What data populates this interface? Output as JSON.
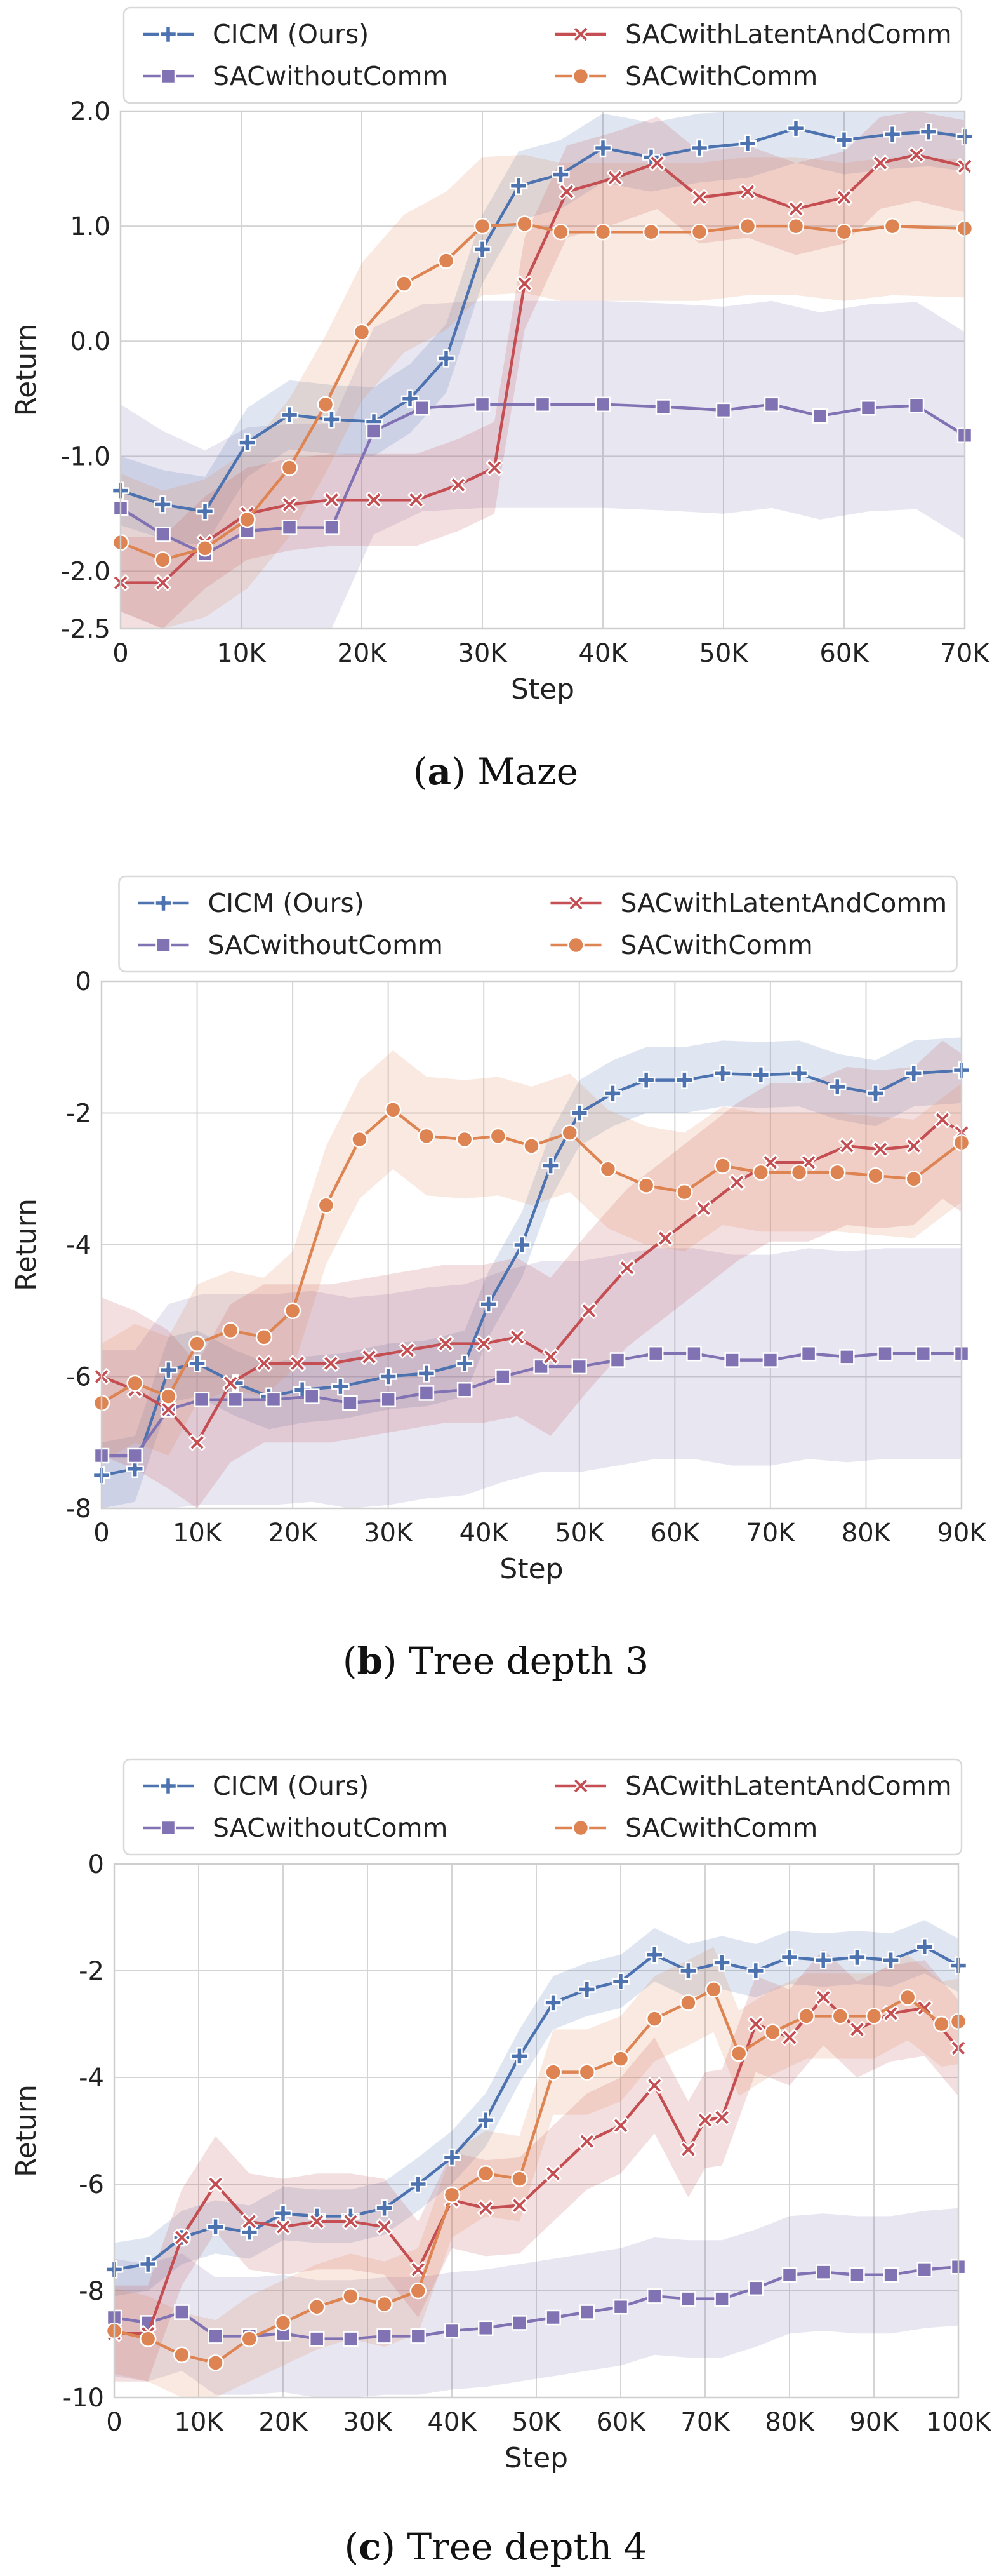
{
  "chart_data": [
    {
      "type": "line",
      "caption_letter": "a",
      "caption_open": "(",
      "caption_close": ")",
      "caption_text": " Maze",
      "xlabel": "Step",
      "ylabel": "Return",
      "xticks": [
        0,
        10000,
        20000,
        30000,
        40000,
        50000,
        60000,
        70000
      ],
      "xtick_labels": [
        "0",
        "10K",
        "20K",
        "30K",
        "40K",
        "50K",
        "60K",
        "70K"
      ],
      "yticks": [
        -2.5,
        -2.0,
        -1.0,
        0.0,
        1.0,
        2.0
      ],
      "ytick_labels": [
        "-2.5",
        "-2.0",
        "-1.0",
        "0.0",
        "1.0",
        "2.0"
      ],
      "xlim": [
        0,
        70000
      ],
      "ylim": [
        -2.5,
        2.0
      ],
      "legend_entries": [
        "CICM (Ours)",
        "SACwithoutComm",
        "SACwithLatentAndComm",
        "SACwithComm"
      ],
      "series": [
        {
          "name": "CICM (Ours)",
          "color": "#4c72b0",
          "marker": "plus",
          "x": [
            0,
            3500,
            7000,
            10500,
            14000,
            17500,
            21000,
            24000,
            27000,
            30000,
            33000,
            36500,
            40000,
            44000,
            48000,
            52000,
            56000,
            60000,
            64000,
            67000,
            70000
          ],
          "y": [
            -1.3,
            -1.42,
            -1.48,
            -0.88,
            -0.64,
            -0.68,
            -0.7,
            -0.5,
            -0.15,
            0.8,
            1.35,
            1.45,
            1.68,
            1.6,
            1.68,
            1.72,
            1.85,
            1.75,
            1.8,
            1.82,
            1.78
          ],
          "band": 0.3
        },
        {
          "name": "SACwithoutComm",
          "color": "#8172b3",
          "marker": "square",
          "x": [
            0,
            3500,
            7000,
            10500,
            14000,
            17500,
            21000,
            25000,
            30000,
            35000,
            40000,
            45000,
            50000,
            54000,
            58000,
            62000,
            66000,
            70000
          ],
          "y": [
            -1.45,
            -1.68,
            -1.85,
            -1.65,
            -1.62,
            -1.62,
            -0.78,
            -0.58,
            -0.55,
            -0.55,
            -0.55,
            -0.57,
            -0.6,
            -0.55,
            -0.65,
            -0.58,
            -0.56,
            -0.82
          ],
          "band": 0.9
        },
        {
          "name": "SACwithLatentAndComm",
          "color": "#c44e52",
          "marker": "cross",
          "x": [
            0,
            3500,
            7000,
            10500,
            14000,
            17500,
            21000,
            24500,
            28000,
            31000,
            33500,
            37000,
            41000,
            44500,
            48000,
            52000,
            56000,
            60000,
            63000,
            66000,
            70000
          ],
          "y": [
            -2.1,
            -2.1,
            -1.75,
            -1.5,
            -1.42,
            -1.38,
            -1.38,
            -1.38,
            -1.25,
            -1.1,
            0.5,
            1.3,
            1.42,
            1.55,
            1.25,
            1.3,
            1.15,
            1.25,
            1.55,
            1.62,
            1.52
          ],
          "band": 0.4
        },
        {
          "name": "SACwithComm",
          "color": "#dd8452",
          "marker": "circle",
          "x": [
            0,
            3500,
            7000,
            10500,
            14000,
            17000,
            20000,
            23500,
            27000,
            30000,
            33500,
            36500,
            40000,
            44000,
            48000,
            52000,
            56000,
            60000,
            64000,
            70000
          ],
          "y": [
            -1.75,
            -1.9,
            -1.8,
            -1.55,
            -1.1,
            -0.55,
            0.08,
            0.5,
            0.7,
            1.0,
            1.02,
            0.95,
            0.95,
            0.95,
            0.95,
            1.0,
            1.0,
            0.95,
            1.0,
            0.98
          ],
          "band": 0.6
        }
      ]
    },
    {
      "type": "line",
      "caption_letter": "b",
      "caption_open": "(",
      "caption_close": ")",
      "caption_text": " Tree depth 3",
      "xlabel": "Step",
      "ylabel": "Return",
      "xticks": [
        0,
        10000,
        20000,
        30000,
        40000,
        50000,
        60000,
        70000,
        80000,
        90000
      ],
      "xtick_labels": [
        "0",
        "10K",
        "20K",
        "30K",
        "40K",
        "50K",
        "60K",
        "70K",
        "80K",
        "90K"
      ],
      "yticks": [
        -8,
        -6,
        -4,
        -2,
        0
      ],
      "ytick_labels": [
        "-8",
        "-6",
        "-4",
        "-2",
        "0"
      ],
      "xlim": [
        0,
        90000
      ],
      "ylim": [
        -8,
        0
      ],
      "legend_entries": [
        "CICM (Ours)",
        "SACwithoutComm",
        "SACwithLatentAndComm",
        "SACwithComm"
      ],
      "series": [
        {
          "name": "CICM (Ours)",
          "color": "#4c72b0",
          "marker": "plus",
          "x": [
            0,
            3500,
            7000,
            10000,
            14000,
            17500,
            21000,
            25000,
            30000,
            34000,
            38000,
            40500,
            44000,
            47000,
            50000,
            53500,
            57000,
            61000,
            65000,
            69000,
            73000,
            77000,
            81000,
            85000,
            90000
          ],
          "y": [
            -7.5,
            -7.4,
            -5.9,
            -5.8,
            -6.1,
            -6.3,
            -6.2,
            -6.15,
            -6.0,
            -5.95,
            -5.8,
            -4.9,
            -4.0,
            -2.8,
            -2.0,
            -1.7,
            -1.5,
            -1.5,
            -1.4,
            -1.42,
            -1.4,
            -1.6,
            -1.7,
            -1.4,
            -1.35
          ],
          "band": 0.5
        },
        {
          "name": "SACwithoutComm",
          "color": "#8172b3",
          "marker": "square",
          "x": [
            0,
            3500,
            7000,
            10500,
            14000,
            18000,
            22000,
            26000,
            30000,
            34000,
            38000,
            42000,
            46000,
            50000,
            54000,
            58000,
            62000,
            66000,
            70000,
            74000,
            78000,
            82000,
            86000,
            90000
          ],
          "y": [
            -7.2,
            -7.2,
            -6.5,
            -6.35,
            -6.35,
            -6.35,
            -6.3,
            -6.4,
            -6.35,
            -6.25,
            -6.2,
            -6.0,
            -5.85,
            -5.85,
            -5.75,
            -5.65,
            -5.65,
            -5.75,
            -5.75,
            -5.65,
            -5.7,
            -5.65,
            -5.65,
            -5.65
          ],
          "band": 1.6
        },
        {
          "name": "SACwithLatentAndComm",
          "color": "#c44e52",
          "marker": "cross",
          "x": [
            0,
            3500,
            7000,
            10000,
            13500,
            17000,
            20500,
            24000,
            28000,
            32000,
            36000,
            40000,
            43500,
            47000,
            51000,
            55000,
            59000,
            63000,
            66500,
            70000,
            74000,
            78000,
            81500,
            85000,
            88000,
            90000
          ],
          "y": [
            -6.0,
            -6.2,
            -6.5,
            -7.0,
            -6.1,
            -5.8,
            -5.8,
            -5.8,
            -5.7,
            -5.6,
            -5.5,
            -5.5,
            -5.4,
            -5.7,
            -5.0,
            -4.35,
            -3.9,
            -3.45,
            -3.05,
            -2.75,
            -2.75,
            -2.5,
            -2.55,
            -2.5,
            -2.1,
            -2.3
          ],
          "band": 1.2
        },
        {
          "name": "SACwithComm",
          "color": "#dd8452",
          "marker": "circle",
          "x": [
            0,
            3500,
            7000,
            10000,
            13500,
            17000,
            20000,
            23500,
            27000,
            30500,
            34000,
            38000,
            41500,
            45000,
            49000,
            53000,
            57000,
            61000,
            65000,
            69000,
            73000,
            77000,
            81000,
            85000,
            90000
          ],
          "y": [
            -6.4,
            -6.1,
            -6.3,
            -5.5,
            -5.3,
            -5.4,
            -5.0,
            -3.4,
            -2.4,
            -1.95,
            -2.35,
            -2.4,
            -2.35,
            -2.5,
            -2.3,
            -2.85,
            -3.1,
            -3.2,
            -2.8,
            -2.9,
            -2.9,
            -2.9,
            -2.95,
            -3.0,
            -2.45
          ],
          "band": 0.9
        }
      ]
    },
    {
      "type": "line",
      "caption_letter": "c",
      "caption_open": "(",
      "caption_close": ")",
      "caption_text": " Tree depth 4",
      "xlabel": "Step",
      "ylabel": "Return",
      "xticks": [
        0,
        10000,
        20000,
        30000,
        40000,
        50000,
        60000,
        70000,
        80000,
        90000,
        100000
      ],
      "xtick_labels": [
        "0",
        "10K",
        "20K",
        "30K",
        "40K",
        "50K",
        "60K",
        "70K",
        "80K",
        "90K",
        "100K"
      ],
      "yticks": [
        -10,
        -8,
        -6,
        -4,
        -2,
        0
      ],
      "ytick_labels": [
        "-10",
        "-8",
        "-6",
        "-4",
        "-2",
        "0"
      ],
      "xlim": [
        0,
        100000
      ],
      "ylim": [
        -10,
        0
      ],
      "legend_entries": [
        "CICM (Ours)",
        "SACwithoutComm",
        "SACwithLatentAndComm",
        "SACwithComm"
      ],
      "series": [
        {
          "name": "CICM (Ours)",
          "color": "#4c72b0",
          "marker": "plus",
          "x": [
            0,
            4000,
            8000,
            12000,
            16000,
            20000,
            24000,
            28000,
            32000,
            36000,
            40000,
            44000,
            48000,
            52000,
            56000,
            60000,
            64000,
            68000,
            72000,
            76000,
            80000,
            84000,
            88000,
            92000,
            96000,
            100000
          ],
          "y": [
            -7.6,
            -7.5,
            -7.0,
            -6.8,
            -6.9,
            -6.55,
            -6.6,
            -6.6,
            -6.45,
            -6.0,
            -5.5,
            -4.8,
            -3.6,
            -2.6,
            -2.35,
            -2.2,
            -1.7,
            -2.0,
            -1.85,
            -2.0,
            -1.75,
            -1.8,
            -1.75,
            -1.8,
            -1.55,
            -1.9
          ],
          "band": 0.5
        },
        {
          "name": "SACwithoutComm",
          "color": "#8172b3",
          "marker": "square",
          "x": [
            0,
            4000,
            8000,
            12000,
            16000,
            20000,
            24000,
            28000,
            32000,
            36000,
            40000,
            44000,
            48000,
            52000,
            56000,
            60000,
            64000,
            68000,
            72000,
            76000,
            80000,
            84000,
            88000,
            92000,
            96000,
            100000
          ],
          "y": [
            -8.5,
            -8.6,
            -8.4,
            -8.85,
            -8.85,
            -8.8,
            -8.9,
            -8.9,
            -8.85,
            -8.85,
            -8.75,
            -8.7,
            -8.6,
            -8.5,
            -8.4,
            -8.3,
            -8.1,
            -8.15,
            -8.15,
            -7.95,
            -7.7,
            -7.65,
            -7.7,
            -7.7,
            -7.6,
            -7.55
          ],
          "band": 1.1
        },
        {
          "name": "SACwithLatentAndComm",
          "color": "#c44e52",
          "marker": "cross",
          "x": [
            0,
            4000,
            8000,
            12000,
            16000,
            20000,
            24000,
            28000,
            32000,
            36000,
            40000,
            44000,
            48000,
            52000,
            56000,
            60000,
            64000,
            68000,
            70000,
            72000,
            76000,
            80000,
            84000,
            88000,
            92000,
            96000,
            100000
          ],
          "y": [
            -8.8,
            -8.8,
            -7.0,
            -6.0,
            -6.7,
            -6.8,
            -6.7,
            -6.7,
            -6.8,
            -7.6,
            -6.3,
            -6.45,
            -6.4,
            -5.8,
            -5.2,
            -4.9,
            -4.15,
            -5.35,
            -4.8,
            -4.75,
            -3.0,
            -3.25,
            -2.5,
            -3.1,
            -2.8,
            -2.7,
            -3.45
          ],
          "band": 0.9
        },
        {
          "name": "SACwithComm",
          "color": "#dd8452",
          "marker": "circle",
          "x": [
            0,
            4000,
            8000,
            12000,
            16000,
            20000,
            24000,
            28000,
            32000,
            36000,
            40000,
            44000,
            48000,
            52000,
            56000,
            60000,
            64000,
            68000,
            71000,
            74000,
            78000,
            82000,
            86000,
            90000,
            94000,
            98000,
            100000
          ],
          "y": [
            -8.75,
            -8.9,
            -9.2,
            -9.35,
            -8.9,
            -8.6,
            -8.3,
            -8.1,
            -8.25,
            -8.0,
            -6.2,
            -5.8,
            -5.9,
            -3.9,
            -3.9,
            -3.65,
            -2.9,
            -2.6,
            -2.35,
            -3.55,
            -3.15,
            -2.85,
            -2.85,
            -2.85,
            -2.5,
            -3.0,
            -2.95
          ],
          "band": 0.8
        }
      ]
    }
  ]
}
